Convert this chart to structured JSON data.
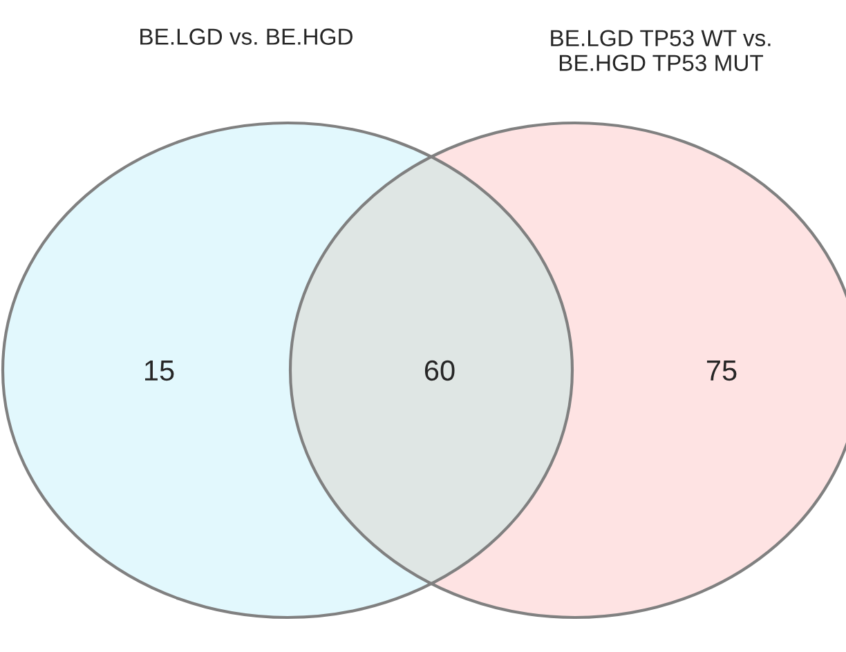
{
  "chart_data": {
    "type": "other",
    "categories": [
      null,
      null,
      null
    ],
    "values": [
      15,
      60,
      75
    ],
    "colors": [
      "#e2f8fd",
      "#dfe6e4",
      "#fee3e3"
    ],
    "data_labels": true,
    "annotations": [
      "BE.LGD vs. BE.HGD",
      "BE.LGD TP53 WT vs.\nBE.HGD TP53 MUT"
    ]
  }
}
